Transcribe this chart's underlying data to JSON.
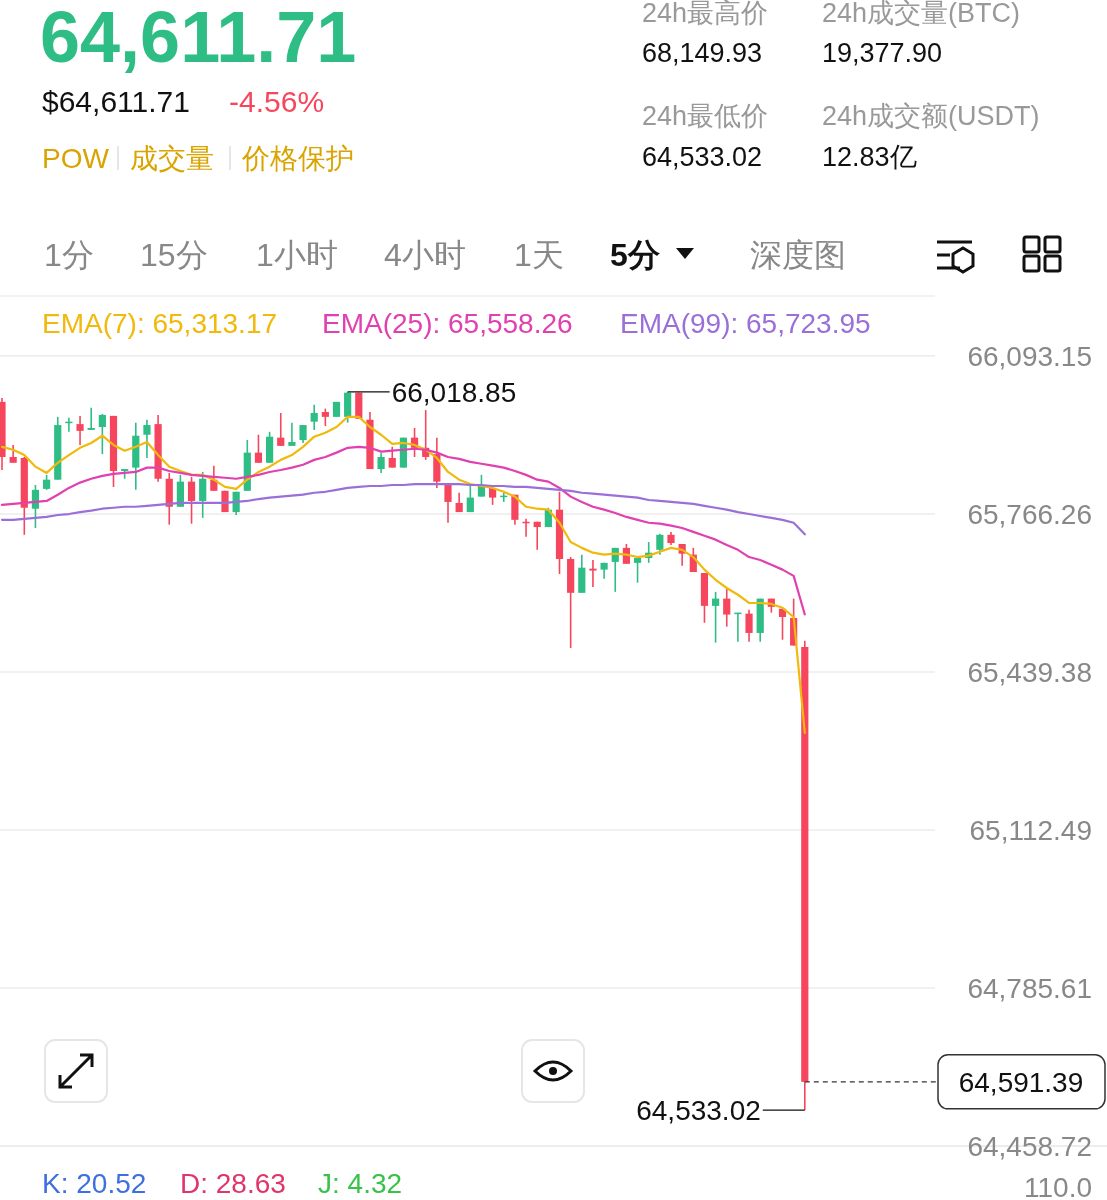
{
  "chart_data": {
    "type": "candlestick",
    "title": "64,611.71",
    "subtitle": "$64,611.71",
    "annotations": [
      "-4.56%",
      "POW",
      "成交量",
      "价格保护",
      "24h最高价",
      "68,149.93",
      "24h成交量(BTC)",
      "19,377.90",
      "24h最低价",
      "64,533.02",
      "24h成交额(USDT)",
      "12.83亿",
      "1分",
      "15分",
      "1小时",
      "4小时",
      "1天",
      "5分",
      "深度图",
      "K: 20.52",
      "D: 28.63",
      "J: 4.32",
      "110.0",
      "66,018.85",
      "64,533.02"
    ],
    "categories": [
      null,
      null,
      null,
      null,
      null,
      null,
      null,
      null,
      null,
      null,
      null,
      null,
      null,
      null,
      null,
      null,
      null,
      null,
      null,
      null,
      null,
      null,
      null,
      null,
      null,
      null,
      null,
      null,
      null,
      null,
      null,
      null,
      null,
      null,
      null,
      null,
      null,
      null,
      null,
      null,
      null,
      null,
      null,
      null,
      null,
      null,
      null,
      null,
      null,
      null,
      null,
      null,
      null,
      null,
      null,
      null,
      null,
      null,
      null,
      null,
      null,
      null,
      null,
      null,
      null,
      null,
      null,
      null,
      null,
      null,
      null,
      null,
      null
    ],
    "ohlc": [
      [
        65998,
        66006,
        65857,
        65884
      ],
      [
        65884,
        65909,
        65872,
        65872
      ],
      [
        65882,
        65884,
        65723,
        65779
      ],
      [
        65777,
        65826,
        65737,
        65816
      ],
      [
        65818,
        65847,
        65816,
        65837
      ],
      [
        65837,
        65967,
        65837,
        65950
      ],
      [
        65955,
        65965,
        65936,
        65957
      ],
      [
        65952,
        65969,
        65909,
        65938
      ],
      [
        65940,
        65986,
        65940,
        65944
      ],
      [
        65946,
        65973,
        65890,
        65971
      ],
      [
        65969,
        65969,
        65822,
        65855
      ],
      [
        65855,
        65859,
        65839,
        65859
      ],
      [
        65862,
        65955,
        65816,
        65928
      ],
      [
        65930,
        65961,
        65882,
        65950
      ],
      [
        65952,
        65971,
        65833,
        65839
      ],
      [
        65839,
        65851,
        65744,
        65781
      ],
      [
        65781,
        65847,
        65781,
        65833
      ],
      [
        65833,
        65843,
        65746,
        65793
      ],
      [
        65793,
        65853,
        65758,
        65839
      ],
      [
        65837,
        65866,
        65814,
        65814
      ],
      [
        65814,
        65814,
        65770,
        65770
      ],
      [
        65770,
        65812,
        65764,
        65812
      ],
      [
        65814,
        65919,
        65814,
        65893
      ],
      [
        65893,
        65930,
        65872,
        65872
      ],
      [
        65872,
        65936,
        65872,
        65926
      ],
      [
        65924,
        65975,
        65907,
        65907
      ],
      [
        65907,
        65955,
        65907,
        65915
      ],
      [
        65919,
        65950,
        65913,
        65950
      ],
      [
        65957,
        65992,
        65940,
        65975
      ],
      [
        65977,
        65984,
        65948,
        65967
      ],
      [
        65967,
        65998,
        65967,
        65998
      ],
      [
        65967,
        66018.85,
        65955,
        66017
      ],
      [
        66017,
        66017,
        65963,
        65963
      ],
      [
        65961,
        65977,
        65859,
        65859
      ],
      [
        65859,
        65893,
        65851,
        65884
      ],
      [
        65882,
        65905,
        65862,
        65862
      ],
      [
        65862,
        65924,
        65862,
        65924
      ],
      [
        65924,
        65944,
        65884,
        65903
      ],
      [
        65903,
        65981,
        65878,
        65884
      ],
      [
        65890,
        65924,
        65820,
        65833
      ],
      [
        65826,
        65826,
        65748,
        65791
      ],
      [
        65789,
        65810,
        65770,
        65770
      ],
      [
        65770,
        65826,
        65770,
        65800
      ],
      [
        65802,
        65847,
        65802,
        65826
      ],
      [
        65820,
        65822,
        65785,
        65800
      ],
      [
        65802,
        65810,
        65791,
        65804
      ],
      [
        65806,
        65806,
        65744,
        65754
      ],
      [
        65750,
        65756,
        65719,
        65748
      ],
      [
        65750,
        65750,
        65692,
        65739
      ],
      [
        65739,
        65779,
        65739,
        65775
      ],
      [
        65775,
        65812,
        65642,
        65673
      ],
      [
        65673,
        65677,
        65489,
        65603
      ],
      [
        65603,
        65682,
        65603,
        65655
      ],
      [
        65653,
        65671,
        65615,
        65649
      ],
      [
        65651,
        65665,
        65632,
        65665
      ],
      [
        65667,
        65696,
        65605,
        65696
      ],
      [
        65696,
        65704,
        65663,
        65663
      ],
      [
        65665,
        65677,
        65624,
        65675
      ],
      [
        65675,
        65708,
        65665,
        65686
      ],
      [
        65692,
        65725,
        65682,
        65723
      ],
      [
        65723,
        65729,
        65702,
        65706
      ],
      [
        65704,
        65704,
        65659,
        65684
      ],
      [
        65682,
        65696,
        65646,
        65646
      ],
      [
        65644,
        65644,
        65541,
        65576
      ],
      [
        65576,
        65605,
        65500,
        65591
      ],
      [
        65591,
        65613,
        65533,
        65558
      ],
      [
        65560,
        65562,
        65502,
        65562
      ],
      [
        65560,
        65568,
        65502,
        65520
      ],
      [
        65520,
        65591,
        65502,
        65591
      ],
      [
        65591,
        65591,
        65562,
        65574
      ],
      [
        65570,
        65570,
        65506,
        65553
      ],
      [
        65551,
        65591,
        65494,
        65494
      ],
      [
        65491,
        65504,
        64533.02,
        64591.39
      ]
    ],
    "colors": [
      "#f6465d",
      "#f6465d",
      "#f6465d",
      "#2ebd85",
      "#2ebd85",
      "#2ebd85",
      "#2ebd85",
      "#f6465d",
      "#2ebd85",
      "#2ebd85",
      "#f6465d",
      "#2ebd85",
      "#2ebd85",
      "#2ebd85",
      "#f6465d",
      "#f6465d",
      "#2ebd85",
      "#f6465d",
      "#2ebd85",
      "#f6465d",
      "#f6465d",
      "#2ebd85",
      "#2ebd85",
      "#f6465d",
      "#2ebd85",
      "#f6465d",
      "#2ebd85",
      "#2ebd85",
      "#2ebd85",
      "#f6465d",
      "#2ebd85",
      "#2ebd85",
      "#f6465d",
      "#f6465d",
      "#2ebd85",
      "#f6465d",
      "#2ebd85",
      "#f6465d",
      "#f6465d",
      "#f6465d",
      "#f6465d",
      "#f6465d",
      "#2ebd85",
      "#2ebd85",
      "#f6465d",
      "#2ebd85",
      "#f6465d",
      "#f6465d",
      "#f6465d",
      "#2ebd85",
      "#f6465d",
      "#f6465d",
      "#2ebd85",
      "#f6465d",
      "#2ebd85",
      "#2ebd85",
      "#f6465d",
      "#2ebd85",
      "#2ebd85",
      "#2ebd85",
      "#f6465d",
      "#f6465d",
      "#f6465d",
      "#f6465d",
      "#2ebd85",
      "#f6465d",
      "#2ebd85",
      "#f6465d",
      "#2ebd85",
      "#f6465d",
      "#f6465d",
      "#f6465d",
      "#f6465d"
    ],
    "series": [
      {
        "type": "line",
        "name": "EMA(7): 65,313.17",
        "color": "#f0b90b",
        "values": [
          65905,
          65899,
          65888,
          65864,
          65851,
          65872,
          65888,
          65903,
          65913,
          65928,
          65909,
          65897,
          65905,
          65915,
          65888,
          65864,
          65855,
          65847,
          65847,
          65837,
          65822,
          65818,
          65837,
          65853,
          65864,
          65878,
          65888,
          65905,
          65926,
          65934,
          65946,
          65967,
          65967,
          65946,
          65930,
          65911,
          65913,
          65909,
          65899,
          65882,
          65853,
          65837,
          65828,
          65824,
          65820,
          65812,
          65802,
          65781,
          65777,
          65775,
          65748,
          65708,
          65696,
          65686,
          65682,
          65684,
          65682,
          65677,
          65680,
          65688,
          65696,
          65692,
          65677,
          65651,
          65630,
          65613,
          65599,
          65582,
          65582,
          65580,
          65572,
          65553,
          65313.17
        ]
      },
      {
        "type": "line",
        "name": "EMA(25): 65,558.26",
        "color": "#e040b0",
        "values": [
          65785,
          65787,
          65789,
          65791,
          65793,
          65806,
          65820,
          65831,
          65839,
          65845,
          65849,
          65851,
          65853,
          65862,
          65862,
          65855,
          65851,
          65847,
          65845,
          65843,
          65841,
          65839,
          65843,
          65847,
          65853,
          65857,
          65862,
          65868,
          65878,
          65884,
          65893,
          65903,
          65905,
          65903,
          65895,
          65897,
          65899,
          65901,
          65899,
          65893,
          65884,
          65880,
          65874,
          65870,
          65866,
          65862,
          65855,
          65847,
          65837,
          65833,
          65820,
          65802,
          65791,
          65781,
          65775,
          65768,
          65760,
          65754,
          65748,
          65746,
          65742,
          65737,
          65729,
          65721,
          65713,
          65702,
          65692,
          65677,
          65671,
          65661,
          65651,
          65638,
          65558.26
        ]
      },
      {
        "type": "line",
        "name": "EMA(99): 65,723.95",
        "color": "#9b6fd8",
        "values": [
          65754,
          65754,
          65756,
          65758,
          65760,
          65764,
          65766,
          65770,
          65773,
          65777,
          65779,
          65781,
          65781,
          65783,
          65785,
          65787,
          65789,
          65789,
          65789,
          65789,
          65789,
          65791,
          65793,
          65797,
          65800,
          65802,
          65804,
          65806,
          65810,
          65812,
          65816,
          65820,
          65822,
          65824,
          65824,
          65826,
          65826,
          65828,
          65828,
          65828,
          65828,
          65828,
          65826,
          65826,
          65824,
          65824,
          65822,
          65822,
          65820,
          65818,
          65816,
          65814,
          65810,
          65808,
          65806,
          65804,
          65802,
          65800,
          65795,
          65793,
          65791,
          65789,
          65787,
          65783,
          65779,
          65775,
          65770,
          65766,
          65762,
          65758,
          65754,
          65748,
          65723.95
        ]
      }
    ],
    "ylim": [
      64458.72,
      66217
    ],
    "yticks": [
      {
        "value": 66093.15,
        "label": "66,093.15"
      },
      {
        "value": 65766.26,
        "label": "65,766.26"
      },
      {
        "value": 65439.38,
        "label": "65,439.38"
      },
      {
        "value": 65112.49,
        "label": "65,112.49"
      },
      {
        "value": 64785.61,
        "label": "64,785.61"
      },
      {
        "value": 64458.72,
        "label": "64,458.72"
      }
    ],
    "ref_lines": [
      {
        "axis": "y",
        "value": 64591.39,
        "label": "64,591.39",
        "line_style": "dashed"
      }
    ],
    "grid": "y",
    "legend": "top"
  }
}
